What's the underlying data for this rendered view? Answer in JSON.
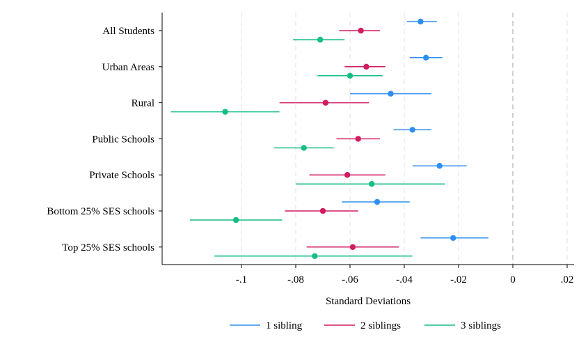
{
  "chart_data": {
    "type": "scatter",
    "subtype": "coefficient-plot-horizontal",
    "xlabel": "Standard Deviations",
    "ylabel": "",
    "xlim": [
      -0.128,
      0.022
    ],
    "xticks": [
      -0.1,
      -0.08,
      -0.06,
      -0.04,
      -0.02,
      0,
      0.02
    ],
    "xtick_labels": [
      "-.1",
      "-.08",
      "-.06",
      "-.04",
      "-.02",
      "0",
      ".02"
    ],
    "vertical_gridlines": true,
    "reference_line_x": 0,
    "categories": [
      "All Students",
      "Urban Areas",
      "Rural",
      "Public Schools",
      "Private Schools",
      "Bottom 25% SES schools",
      "Top 25% SES schools"
    ],
    "series": [
      {
        "name": "1 sibling",
        "color": "#2f8ff0",
        "estimates": [
          -0.034,
          -0.032,
          -0.045,
          -0.037,
          -0.027,
          -0.05,
          -0.022
        ],
        "ci_low": [
          -0.039,
          -0.038,
          -0.06,
          -0.044,
          -0.037,
          -0.063,
          -0.034
        ],
        "ci_high": [
          -0.028,
          -0.026,
          -0.03,
          -0.03,
          -0.017,
          -0.038,
          -0.009
        ]
      },
      {
        "name": "2 siblings",
        "color": "#d01c60",
        "estimates": [
          -0.056,
          -0.054,
          -0.069,
          -0.057,
          -0.061,
          -0.07,
          -0.059
        ],
        "ci_low": [
          -0.064,
          -0.062,
          -0.086,
          -0.065,
          -0.075,
          -0.084,
          -0.076
        ],
        "ci_high": [
          -0.049,
          -0.047,
          -0.053,
          -0.049,
          -0.047,
          -0.057,
          -0.042
        ]
      },
      {
        "name": "3 siblings",
        "color": "#14be82",
        "estimates": [
          -0.071,
          -0.06,
          -0.106,
          -0.077,
          -0.052,
          -0.102,
          -0.073
        ],
        "ci_low": [
          -0.081,
          -0.072,
          -0.126,
          -0.088,
          -0.08,
          -0.119,
          -0.11
        ],
        "ci_high": [
          -0.062,
          -0.048,
          -0.086,
          -0.066,
          -0.025,
          -0.085,
          -0.037
        ]
      }
    ],
    "legend_position": "bottom"
  }
}
